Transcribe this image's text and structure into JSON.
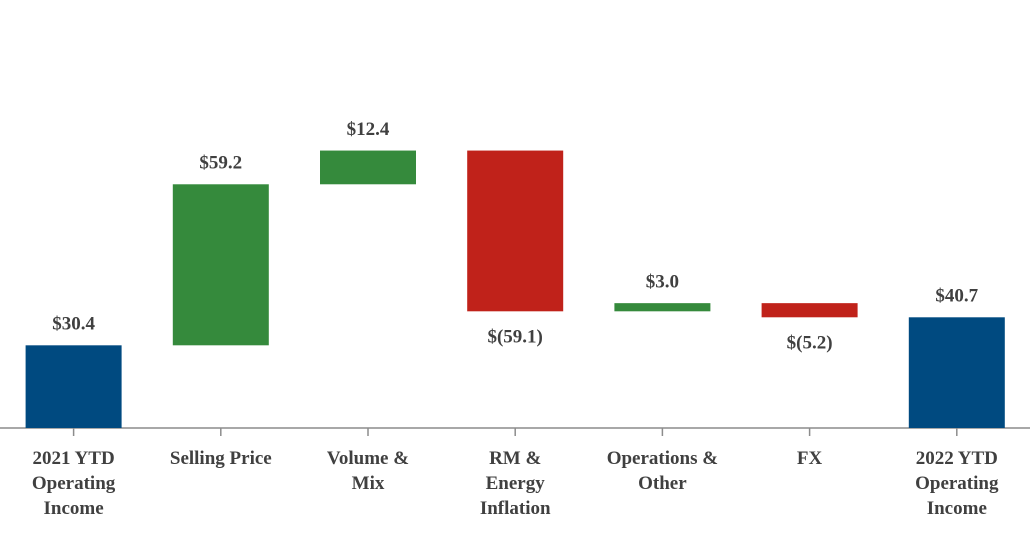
{
  "chart_data": {
    "type": "waterfall",
    "categories": [
      "2021 YTD\nOperating\nIncome",
      "Selling Price",
      "Volume &\nMix",
      "RM &\nEnergy\nInflation",
      "Operations &\nOther",
      "FX",
      "2022 YTD\nOperating\nIncome"
    ],
    "values": [
      30.4,
      59.2,
      12.4,
      -59.1,
      3.0,
      -5.2,
      40.7
    ],
    "value_labels": [
      "$30.4",
      "$59.2",
      "$12.4",
      "$(59.1)",
      "$3.0",
      "$(5.2)",
      "$40.7"
    ],
    "colors": [
      "#004a80",
      "#358a3c",
      "#358a3c",
      "#c0221a",
      "#358a3c",
      "#c0221a",
      "#004a80"
    ]
  }
}
